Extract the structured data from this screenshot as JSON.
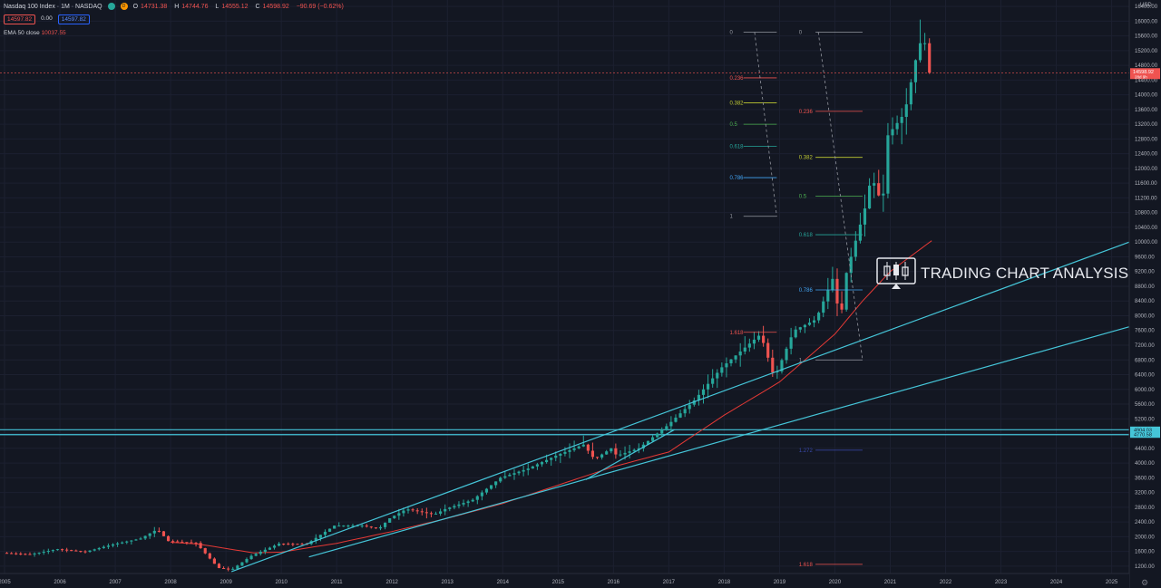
{
  "header": {
    "symbol": "Nasdaq 100 Index",
    "interval": "1M",
    "exchange": "NASDAQ",
    "badge": "D",
    "o_label": "O",
    "o_val": "14731.38",
    "h_label": "H",
    "h_val": "14744.76",
    "l_label": "L",
    "l_val": "14555.12",
    "c_label": "C",
    "c_val": "14598.92",
    "change": "−90.69 (−0.62%)",
    "sell_price": "14597.82",
    "spread": "0.00",
    "buy_price": "14597.82",
    "ema_label": "EMA 50 close",
    "ema_val": "10037.55"
  },
  "axis": {
    "currency": "USD",
    "last_price": "14598.92",
    "countdown": "28d 9h",
    "support_top_label": "4904.03",
    "support_bot_label": "4770.58"
  },
  "watermark": {
    "text": "TRADING CHART ANALYSIS"
  },
  "colors": {
    "bg": "#131722",
    "up": "#26a69a",
    "down": "#ef5350",
    "trendline": "#45c5d8",
    "ema": "#e53935",
    "grid": "#1c2030"
  },
  "chart_data": {
    "type": "candlestick",
    "title": "Nasdaq 100 Index",
    "interval": "1M",
    "ylim": [
      1000,
      16500
    ],
    "y_ticks": [
      1200,
      1600,
      2000,
      2400,
      2800,
      3200,
      3600,
      4000,
      4400,
      4800,
      5200,
      5600,
      6000,
      6400,
      6800,
      7200,
      7600,
      8000,
      8400,
      8800,
      9200,
      9600,
      10000,
      10400,
      10800,
      11200,
      11600,
      12000,
      12400,
      12800,
      13200,
      13600,
      14000,
      14400,
      14800,
      15200,
      15600,
      16000,
      16400
    ],
    "x_ticks": [
      "2005",
      "2006",
      "2007",
      "2008",
      "2009",
      "2010",
      "2011",
      "2012",
      "2013",
      "2014",
      "2015",
      "2016",
      "2017",
      "2018",
      "2019",
      "2020",
      "2021",
      "2022",
      "2023",
      "2024",
      "2025"
    ],
    "xlim": [
      2005.0,
      2025.4
    ],
    "anchors": [
      [
        2005.0,
        1560
      ],
      [
        2005.5,
        1520
      ],
      [
        2006.0,
        1660
      ],
      [
        2006.5,
        1590
      ],
      [
        2007.0,
        1790
      ],
      [
        2007.5,
        1950
      ],
      [
        2007.8,
        2200
      ],
      [
        2008.0,
        1880
      ],
      [
        2008.5,
        1830
      ],
      [
        2008.9,
        1150
      ],
      [
        2009.15,
        1110
      ],
      [
        2009.5,
        1480
      ],
      [
        2010.0,
        1810
      ],
      [
        2010.5,
        1800
      ],
      [
        2011.0,
        2300
      ],
      [
        2011.5,
        2300
      ],
      [
        2011.8,
        2210
      ],
      [
        2012.0,
        2500
      ],
      [
        2012.3,
        2750
      ],
      [
        2012.8,
        2600
      ],
      [
        2013.0,
        2750
      ],
      [
        2013.5,
        3000
      ],
      [
        2014.0,
        3600
      ],
      [
        2014.5,
        3850
      ],
      [
        2015.0,
        4200
      ],
      [
        2015.5,
        4500
      ],
      [
        2015.7,
        4100
      ],
      [
        2016.0,
        4400
      ],
      [
        2016.1,
        4200
      ],
      [
        2016.5,
        4400
      ],
      [
        2017.0,
        5000
      ],
      [
        2017.5,
        5700
      ],
      [
        2018.0,
        6600
      ],
      [
        2018.7,
        7500
      ],
      [
        2018.95,
        6300
      ],
      [
        2019.3,
        7600
      ],
      [
        2019.7,
        7900
      ],
      [
        2020.0,
        9000
      ],
      [
        2020.15,
        7800
      ],
      [
        2020.2,
        8900
      ],
      [
        2020.6,
        11000
      ],
      [
        2020.7,
        11800
      ],
      [
        2020.9,
        11000
      ],
      [
        2021.0,
        12900
      ],
      [
        2021.3,
        13500
      ],
      [
        2021.55,
        15300
      ],
      [
        2021.65,
        15600
      ],
      [
        2021.7,
        15000
      ],
      [
        2021.75,
        14598.92
      ]
    ],
    "ema50_anchors": [
      [
        2008.0,
        1850
      ],
      [
        2008.5,
        1800
      ],
      [
        2009.0,
        1680
      ],
      [
        2009.5,
        1560
      ],
      [
        2010.0,
        1580
      ],
      [
        2011.0,
        1820
      ],
      [
        2012.0,
        2140
      ],
      [
        2013.0,
        2500
      ],
      [
        2014.0,
        2900
      ],
      [
        2015.0,
        3400
      ],
      [
        2016.0,
        3900
      ],
      [
        2017.0,
        4300
      ],
      [
        2018.0,
        5300
      ],
      [
        2019.0,
        6200
      ],
      [
        2020.0,
        7500
      ],
      [
        2020.5,
        8400
      ],
      [
        2021.0,
        9200
      ],
      [
        2021.75,
        10037.55
      ]
    ],
    "trendlines": [
      {
        "from": [
          2009.1,
          1050
        ],
        "to": [
          2025.6,
          10000
        ]
      },
      {
        "from": [
          2010.5,
          1450
        ],
        "to": [
          2025.6,
          7700
        ]
      },
      {
        "from": [
          2015.5,
          3550
        ],
        "to": [
          2017.1,
          4904.03
        ]
      }
    ],
    "support_lines": [
      4904.03,
      4770.58
    ],
    "fib_sets": [
      {
        "x_label": 2018.1,
        "x_start": 2018.35,
        "x_end": 2018.95,
        "levels": [
          {
            "label": "0",
            "price": 15700,
            "color": "#9598a1"
          },
          {
            "label": "0.236",
            "price": 14460,
            "color": "#ef5350"
          },
          {
            "label": "0.382",
            "price": 13780,
            "color": "#c0ca33"
          },
          {
            "label": "0.5",
            "price": 13200,
            "color": "#4caf50"
          },
          {
            "label": "0.618",
            "price": 12600,
            "color": "#26a69a"
          },
          {
            "label": "0.786",
            "price": 11750,
            "color": "#42a5f5"
          },
          {
            "label": "1",
            "price": 10700,
            "color": "#9598a1"
          },
          {
            "label": "1.618",
            "price": 7550,
            "color": "#ef5350"
          }
        ],
        "diagonal": {
          "from": [
            2018.55,
            15700
          ],
          "to": [
            2018.95,
            10700
          ]
        }
      },
      {
        "x_label": 2019.35,
        "x_start": 2019.65,
        "x_end": 2020.5,
        "levels": [
          {
            "label": "0",
            "price": 15700,
            "color": "#9598a1"
          },
          {
            "label": "0.236",
            "price": 13550,
            "color": "#ef5350"
          },
          {
            "label": "0.382",
            "price": 12300,
            "color": "#c0ca33"
          },
          {
            "label": "0.5",
            "price": 11250,
            "color": "#4caf50"
          },
          {
            "label": "0.618",
            "price": 10200,
            "color": "#26a69a"
          },
          {
            "label": "0.786",
            "price": 8700,
            "color": "#42a5f5"
          },
          {
            "label": "1",
            "price": 6800,
            "color": "#9598a1"
          },
          {
            "label": "1.272",
            "price": 4350,
            "color": "#3949ab"
          },
          {
            "label": "1.618",
            "price": 1250,
            "color": "#ef5350"
          }
        ],
        "diagonal": {
          "from": [
            2019.7,
            15700
          ],
          "to": [
            2020.5,
            6800
          ]
        }
      }
    ]
  }
}
